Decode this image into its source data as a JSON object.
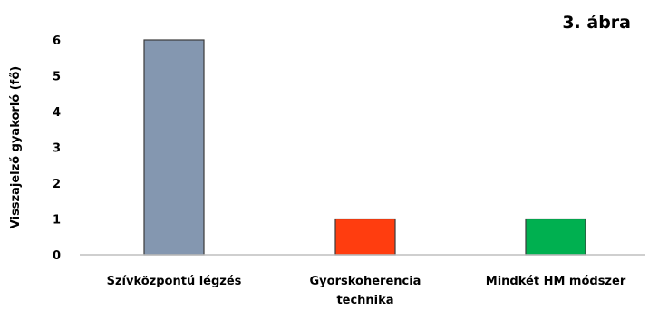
{
  "figure_label": "3. ábra",
  "chart_data": {
    "type": "bar",
    "categories": [
      "Szívközpontú légzés",
      "Gyorskoherencia technika",
      "Mindkét HM módszer"
    ],
    "category_lines": [
      [
        "Szívközpontú légzés"
      ],
      [
        "Gyorskoherencia",
        "technika"
      ],
      [
        "Mindkét HM módszer"
      ]
    ],
    "values": [
      6,
      1,
      1
    ],
    "bar_colors": [
      "#8497b0",
      "#ff3d0f",
      "#00b050"
    ],
    "title": "",
    "xlabel": "",
    "ylabel": "Visszajelző gyakorló (fő)",
    "ylim": [
      0,
      6
    ],
    "yticks": [
      0,
      1,
      2,
      3,
      4,
      5,
      6
    ],
    "grid": false,
    "legend": "none"
  }
}
